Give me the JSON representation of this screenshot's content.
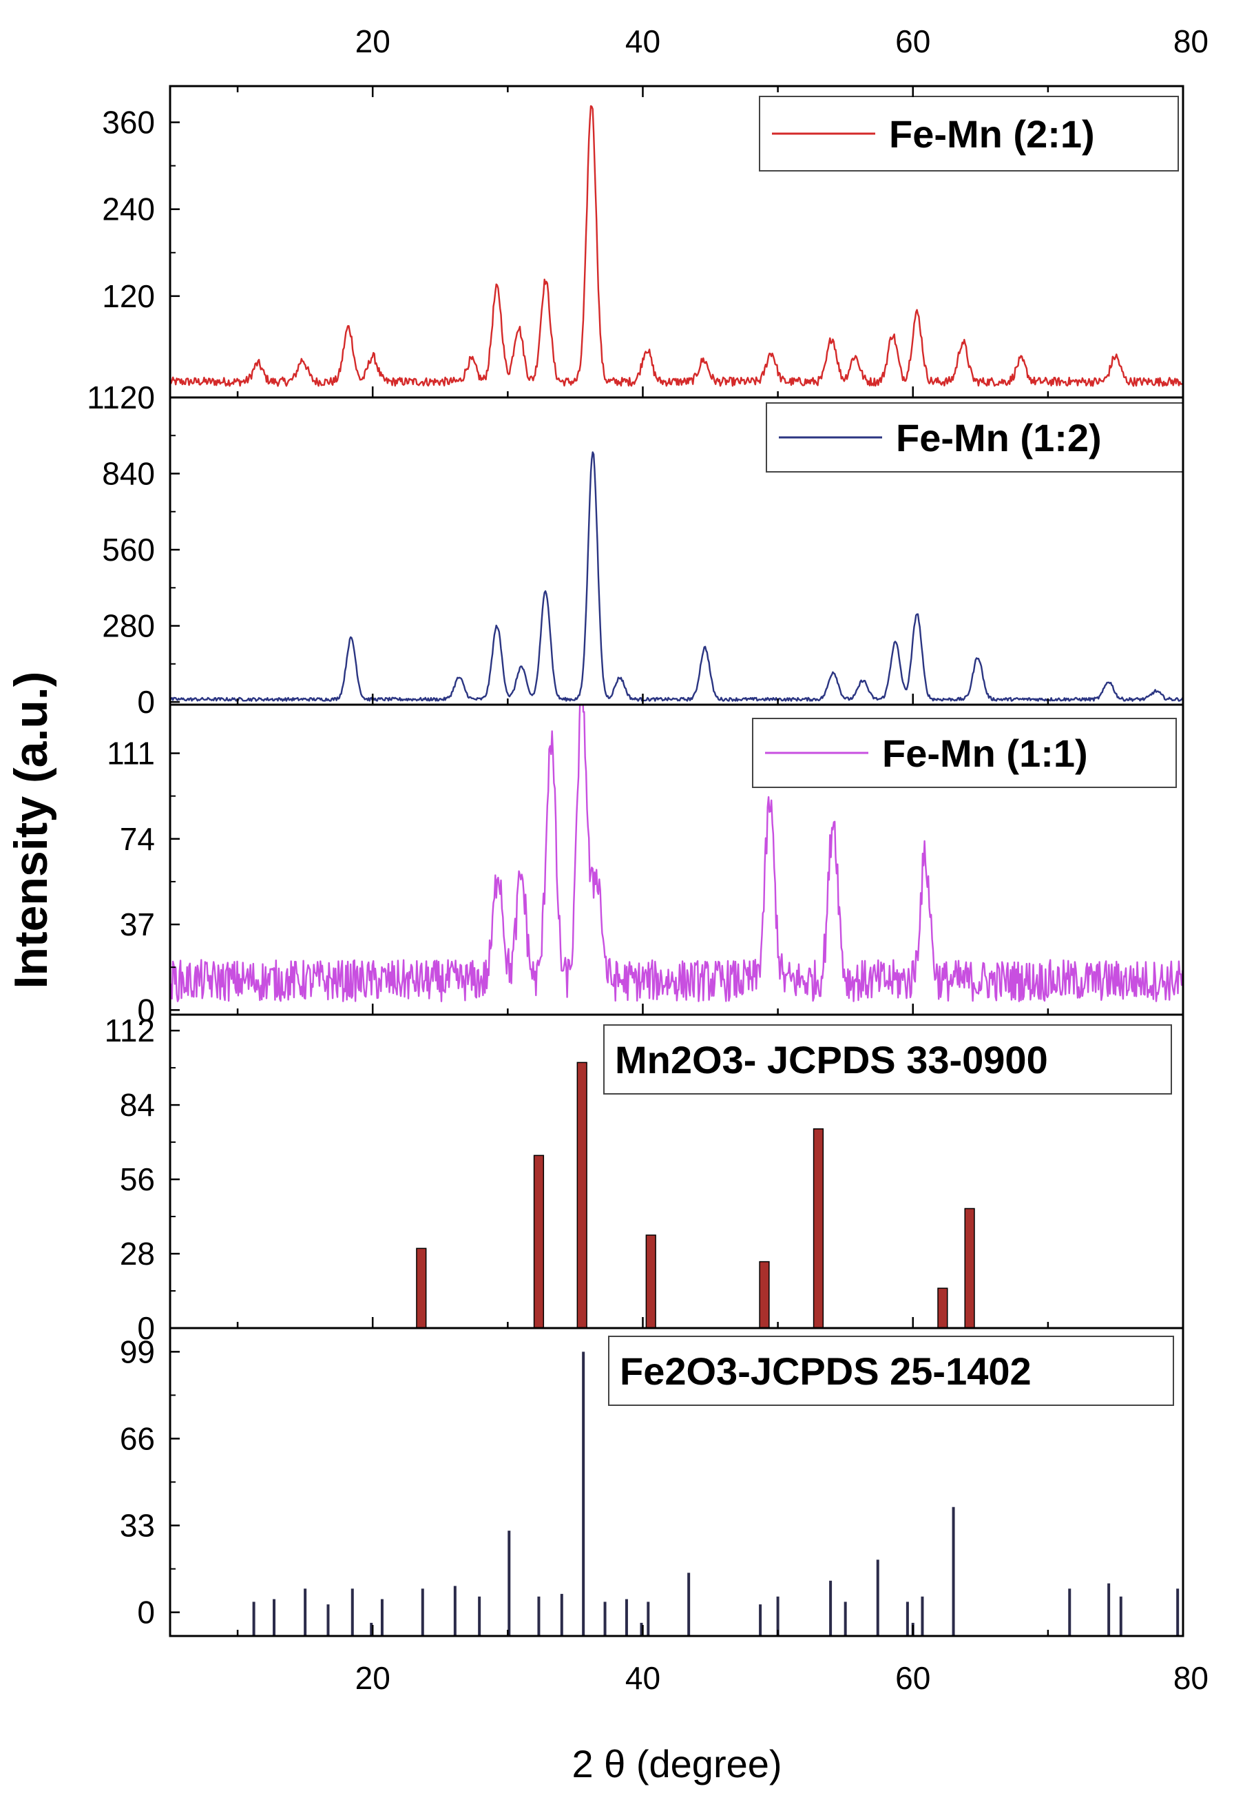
{
  "chart_data": {
    "type": "line",
    "xlabel": "2 θ (degree)",
    "ylabel": "Intensity (a.u.)",
    "xlim": [
      5,
      80
    ],
    "x_ticks": [
      "20",
      "40",
      "60",
      "80"
    ],
    "x_tick_values": [
      20,
      40,
      60,
      80
    ],
    "top_axis_ticks": true,
    "panels": [
      {
        "id": "fe-mn-2-1",
        "type": "line",
        "legend": "Fe-Mn (2:1)",
        "color": "#d42a2a",
        "ylim": [
          -20,
          410
        ],
        "y_ticks": [
          "120",
          "240",
          "360"
        ],
        "y_tick_values": [
          120,
          240,
          360
        ],
        "noise_level": 12,
        "baseline": 0,
        "peaks": [
          {
            "x": 11.5,
            "y": 25
          },
          {
            "x": 14.8,
            "y": 30
          },
          {
            "x": 18.2,
            "y": 75
          },
          {
            "x": 20.0,
            "y": 35
          },
          {
            "x": 27.3,
            "y": 30
          },
          {
            "x": 29.2,
            "y": 130
          },
          {
            "x": 30.8,
            "y": 75
          },
          {
            "x": 32.8,
            "y": 140
          },
          {
            "x": 36.2,
            "y": 385
          },
          {
            "x": 40.3,
            "y": 45
          },
          {
            "x": 44.5,
            "y": 30
          },
          {
            "x": 49.5,
            "y": 40
          },
          {
            "x": 54.0,
            "y": 60
          },
          {
            "x": 55.7,
            "y": 35
          },
          {
            "x": 58.5,
            "y": 65
          },
          {
            "x": 60.3,
            "y": 95
          },
          {
            "x": 63.7,
            "y": 55
          },
          {
            "x": 68.0,
            "y": 30
          },
          {
            "x": 75.0,
            "y": 35
          }
        ]
      },
      {
        "id": "fe-mn-1-2",
        "type": "line",
        "legend": "Fe-Mn (1:2)",
        "color": "#2b3582",
        "ylim": [
          -10,
          1120
        ],
        "y_ticks": [
          "0",
          "280",
          "560",
          "840",
          "1120"
        ],
        "y_tick_values": [
          0,
          280,
          560,
          840,
          1120
        ],
        "noise_level": 12,
        "baseline": 8,
        "peaks": [
          {
            "x": 18.4,
            "y": 225
          },
          {
            "x": 26.4,
            "y": 80
          },
          {
            "x": 29.2,
            "y": 270
          },
          {
            "x": 31.0,
            "y": 120
          },
          {
            "x": 32.8,
            "y": 400
          },
          {
            "x": 36.3,
            "y": 910
          },
          {
            "x": 38.3,
            "y": 80
          },
          {
            "x": 44.6,
            "y": 190
          },
          {
            "x": 54.1,
            "y": 100
          },
          {
            "x": 56.3,
            "y": 70
          },
          {
            "x": 58.7,
            "y": 210
          },
          {
            "x": 60.3,
            "y": 315
          },
          {
            "x": 64.8,
            "y": 155
          },
          {
            "x": 74.5,
            "y": 65
          },
          {
            "x": 78.0,
            "y": 30
          }
        ]
      },
      {
        "id": "fe-mn-1-1",
        "type": "line",
        "legend": "Fe-Mn (1:1)",
        "color": "#c84fe0",
        "ylim": [
          -2,
          132
        ],
        "y_ticks": [
          "0",
          "37",
          "74",
          "111"
        ],
        "y_tick_values": [
          0,
          37,
          74,
          111
        ],
        "noise_level": 18,
        "baseline": 10,
        "peaks": [
          {
            "x": 29.3,
            "y": 48
          },
          {
            "x": 31.0,
            "y": 45
          },
          {
            "x": 33.2,
            "y": 105
          },
          {
            "x": 35.5,
            "y": 126
          },
          {
            "x": 36.6,
            "y": 46
          },
          {
            "x": 49.4,
            "y": 76
          },
          {
            "x": 54.1,
            "y": 70
          },
          {
            "x": 60.9,
            "y": 53
          }
        ]
      },
      {
        "id": "mn2o3-jcpds",
        "type": "bar",
        "legend": "Mn2O3- JCPDS 33-0900",
        "color": "#a8302c",
        "ylim": [
          0,
          118
        ],
        "y_ticks": [
          "0",
          "28",
          "56",
          "84",
          "112"
        ],
        "y_tick_values": [
          0,
          28,
          56,
          84,
          112
        ],
        "bar_width": 0.7,
        "x": [
          23.6,
          32.3,
          35.5,
          40.6,
          49.0,
          53.0,
          62.2,
          64.2
        ],
        "values": [
          30,
          65,
          100,
          35,
          25,
          75,
          15,
          45
        ]
      },
      {
        "id": "fe2o3-jcpds",
        "type": "stick",
        "legend": "Fe2O3-JCPDS 25-1402",
        "color": "#2b2b4a",
        "ylim": [
          -9,
          108
        ],
        "y_ticks": [
          "0",
          "33",
          "66",
          "99"
        ],
        "y_tick_values": [
          0,
          33,
          66,
          99
        ],
        "x": [
          11.2,
          12.7,
          15.0,
          16.7,
          18.5,
          19.9,
          20.7,
          23.7,
          26.1,
          27.9,
          30.1,
          32.3,
          34.0,
          35.6,
          37.2,
          38.8,
          39.9,
          40.4,
          43.4,
          48.7,
          50.0,
          53.9,
          55.0,
          57.4,
          59.6,
          60.0,
          60.7,
          63.0,
          71.6,
          74.5,
          75.4,
          79.6
        ],
        "values": [
          4,
          5,
          9,
          3,
          9,
          -4,
          5,
          9,
          10,
          6,
          31,
          6,
          7,
          99,
          4,
          5,
          -4,
          4,
          15,
          3,
          6,
          12,
          4,
          20,
          4,
          -4,
          6,
          40,
          9,
          11,
          6,
          9
        ]
      }
    ]
  }
}
